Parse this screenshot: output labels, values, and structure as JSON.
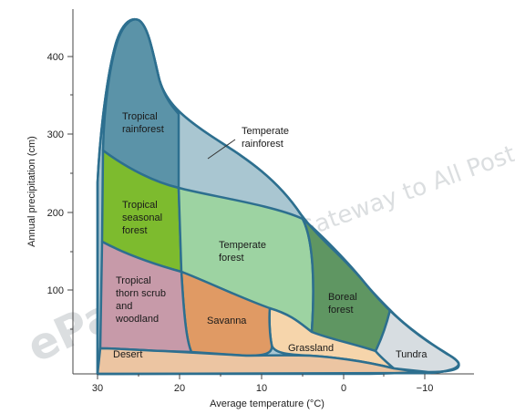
{
  "chart_data": {
    "type": "area",
    "xlabel": "Average temperature (°C)",
    "ylabel": "Annual precipitation (cm)",
    "x_ticks": [
      "30",
      "20",
      "10",
      "0",
      "−10"
    ],
    "y_ticks": [
      "100",
      "200",
      "300",
      "400"
    ],
    "xlim": [
      32,
      -15
    ],
    "ylim": [
      0,
      450
    ],
    "grid": false,
    "regions": [
      {
        "name": "Tropical rainforest",
        "color": "#5b93a8"
      },
      {
        "name": "Temperate rainforest",
        "color": "#a9c6d1"
      },
      {
        "name": "Tropical seasonal forest",
        "color": "#7dbb2e"
      },
      {
        "name": "Temperate forest",
        "color": "#9dd3a2"
      },
      {
        "name": "Tropical thorn scrub and woodland",
        "color": "#c79aa9"
      },
      {
        "name": "Savanna",
        "color": "#e09a64"
      },
      {
        "name": "Boreal forest",
        "color": "#5f9662"
      },
      {
        "name": "Grassland",
        "color": "#f6d5ab"
      },
      {
        "name": "Desert",
        "color": "#ecc5a2"
      },
      {
        "name": "Tundra",
        "color": "#d7dde1"
      }
    ],
    "labels": {
      "tropical_rainforest": [
        "Tropical",
        "rainforest"
      ],
      "temperate_rainforest": [
        "Temperate",
        "rainforest"
      ],
      "tropical_seasonal": [
        "Tropical",
        "seasonal",
        "forest"
      ],
      "temperate_forest": [
        "Temperate",
        "forest"
      ],
      "thorn_scrub": [
        "Tropical",
        "thorn scrub",
        "and",
        "woodland"
      ],
      "savanna": "Savanna",
      "boreal": [
        "Boreal",
        "forest"
      ],
      "grassland": "Grassland",
      "desert": "Desert",
      "tundra": "Tundra"
    }
  },
  "watermark": {
    "line1": "Gateway to All Post Graduate Courses",
    "logo_text": "ePathshala"
  }
}
